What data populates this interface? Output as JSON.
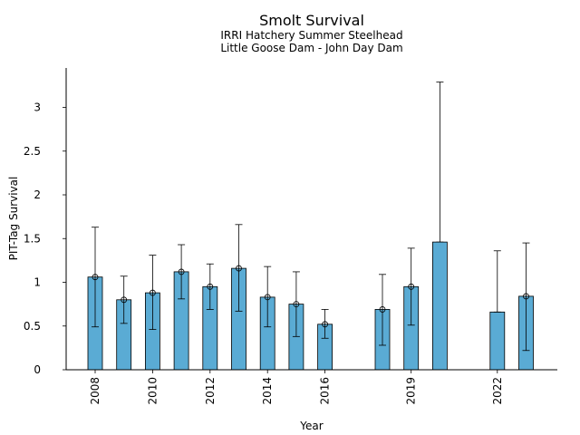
{
  "chart_data": {
    "type": "bar",
    "title": "Smolt Survival",
    "subtitle_lines": [
      "IRRI Hatchery Summer Steelhead",
      "Little Goose Dam - John Day Dam"
    ],
    "xlabel": "Year",
    "ylabel": "PIT-Tag Survival",
    "ylim": [
      0,
      3.45
    ],
    "yticks": [
      0,
      0.5,
      1,
      1.5,
      2,
      2.5,
      3
    ],
    "ytick_labels": [
      "0",
      "0.5",
      "1",
      "1.5",
      "2",
      "2.5",
      "3"
    ],
    "xtick_years": [
      2008,
      2010,
      2012,
      2014,
      2016,
      2019,
      2022
    ],
    "xtick_labels": [
      "2008",
      "2010",
      "2012",
      "2014",
      "2016",
      "2019",
      "2022"
    ],
    "bar_color": "#5aabd4",
    "grid": false,
    "bars": [
      {
        "year": 2008,
        "value": 1.06,
        "lower": 0.49,
        "upper": 1.63,
        "marker": true
      },
      {
        "year": 2009,
        "value": 0.8,
        "lower": 0.53,
        "upper": 1.07,
        "marker": true
      },
      {
        "year": 2010,
        "value": 0.88,
        "lower": 0.46,
        "upper": 1.31,
        "marker": true
      },
      {
        "year": 2011,
        "value": 1.12,
        "lower": 0.81,
        "upper": 1.43,
        "marker": true
      },
      {
        "year": 2012,
        "value": 0.95,
        "lower": 0.69,
        "upper": 1.21,
        "marker": true
      },
      {
        "year": 2013,
        "value": 1.16,
        "lower": 0.67,
        "upper": 1.66,
        "marker": true
      },
      {
        "year": 2014,
        "value": 0.83,
        "lower": 0.49,
        "upper": 1.18,
        "marker": true
      },
      {
        "year": 2015,
        "value": 0.75,
        "lower": 0.38,
        "upper": 1.12,
        "marker": true
      },
      {
        "year": 2016,
        "value": 0.52,
        "lower": 0.36,
        "upper": 0.69,
        "marker": true
      },
      {
        "year": 2018,
        "value": 0.69,
        "lower": 0.28,
        "upper": 1.09,
        "marker": true
      },
      {
        "year": 2019,
        "value": 0.95,
        "lower": 0.51,
        "upper": 1.39,
        "marker": true
      },
      {
        "year": 2020,
        "value": 1.46,
        "lower": 1.46,
        "upper": 3.29,
        "marker": false
      },
      {
        "year": 2022,
        "value": 0.66,
        "lower": 0.66,
        "upper": 1.36,
        "marker": false
      },
      {
        "year": 2023,
        "value": 0.84,
        "lower": 0.22,
        "upper": 1.45,
        "marker": true
      }
    ]
  }
}
